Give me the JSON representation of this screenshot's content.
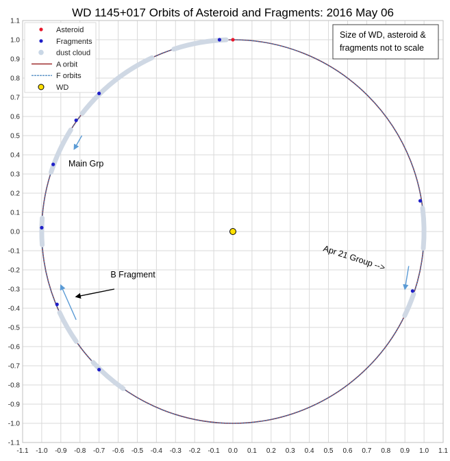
{
  "chart_data": {
    "type": "scatter",
    "title": "WD 1145+017 Orbits of Asteroid and Fragments: 2016 May 06",
    "xlim": [
      -1.1,
      1.1
    ],
    "ylim": [
      -1.1,
      1.1
    ],
    "x_ticks": [
      -1.1,
      -1.0,
      -0.9,
      -0.8,
      -0.7,
      -0.6,
      -0.5,
      -0.4,
      -0.3,
      -0.2,
      -0.1,
      0.0,
      0.1,
      0.2,
      0.3,
      0.4,
      0.5,
      0.6,
      0.7,
      0.8,
      0.9,
      1.0,
      1.1
    ],
    "y_ticks": [
      1.1,
      1.0,
      0.9,
      0.8,
      0.7,
      0.6,
      0.5,
      0.4,
      0.3,
      0.2,
      0.1,
      0.0,
      -0.1,
      -0.2,
      -0.3,
      -0.4,
      -0.5,
      -0.6,
      -0.7,
      -0.8,
      -0.9,
      -1.0,
      -1.1
    ],
    "tick_labels_x": [
      "-1.1",
      "-1.0",
      "-0.9",
      "-0.8",
      "-0.7",
      "-0.6",
      "-0.5",
      "-0.4",
      "-0.3",
      "-0.2",
      "-0.1",
      "0.0",
      "0.1",
      "0.2",
      "0.3",
      "0.4",
      "0.5",
      "0.6",
      "0.7",
      "0.8",
      "0.9",
      "1.0",
      "1.1"
    ],
    "tick_labels_y": [
      "1.1",
      "1.0",
      "0.9",
      "0.8",
      "0.7",
      "0.6",
      "0.5",
      "0.4",
      "0.3",
      "0.2",
      "0.1",
      "0.0",
      "-0.1",
      "-0.2",
      "-0.3",
      "-0.4",
      "-0.5",
      "-0.6",
      "-0.7",
      "-0.8",
      "-0.9",
      "-1.0",
      "-1.1"
    ],
    "grid": true,
    "legend_position": "top-left",
    "series": [
      {
        "name": "Asteroid",
        "color": "#e8192c",
        "points": [
          [
            0.0,
            1.0
          ]
        ]
      },
      {
        "name": "Fragments",
        "color": "#1f1fc8",
        "points": [
          [
            -0.07,
            1.0
          ],
          [
            -0.7,
            0.72
          ],
          [
            -0.82,
            0.58
          ],
          [
            -0.94,
            0.35
          ],
          [
            -1.0,
            0.02
          ],
          [
            -0.92,
            -0.38
          ],
          [
            -0.7,
            -0.72
          ],
          [
            0.98,
            0.16
          ],
          [
            0.94,
            -0.31
          ]
        ]
      },
      {
        "name": "dust cloud",
        "color": "#cfd8e4",
        "arcs_deg": [
          [
            92,
            108
          ],
          [
            115,
            142
          ],
          [
            148,
            162
          ],
          [
            176,
            184
          ],
          [
            205,
            215
          ],
          [
            223,
            235
          ],
          [
            355,
            7
          ],
          [
            334,
            341
          ]
        ]
      },
      {
        "name": "A orbit",
        "color": "#9e2a2b",
        "radius": 1.0
      },
      {
        "name": "F orbits",
        "color": "#2e75b6",
        "radius": 1.0
      },
      {
        "name": "WD",
        "color": "#ffe000",
        "points": [
          [
            0.0,
            0.0
          ]
        ]
      }
    ],
    "annotations": [
      {
        "text": "Main Grp",
        "x": -0.86,
        "y": 0.34
      },
      {
        "text": "B Fragment",
        "x": -0.64,
        "y": -0.24
      },
      {
        "text": "Apr 21 Group  -->",
        "x": 0.47,
        "y": -0.1,
        "rotate": 18
      },
      {
        "text": "Size of WD, asteroid &",
        "x": 0.55,
        "y": 1.02
      },
      {
        "text": "fragments not to scale",
        "x": 0.55,
        "y": 0.94
      }
    ],
    "arrows": [
      {
        "from": [
          -0.79,
          0.5
        ],
        "to": [
          -0.83,
          0.43
        ],
        "color": "#5b9bd5"
      },
      {
        "from": [
          -0.82,
          -0.46
        ],
        "to": [
          -0.9,
          -0.28
        ],
        "color": "#5b9bd5"
      },
      {
        "from": [
          0.92,
          -0.18
        ],
        "to": [
          0.9,
          -0.3
        ],
        "color": "#5b9bd5"
      },
      {
        "from": [
          -0.62,
          -0.3
        ],
        "to": [
          -0.82,
          -0.34
        ],
        "color": "#000000"
      }
    ]
  }
}
